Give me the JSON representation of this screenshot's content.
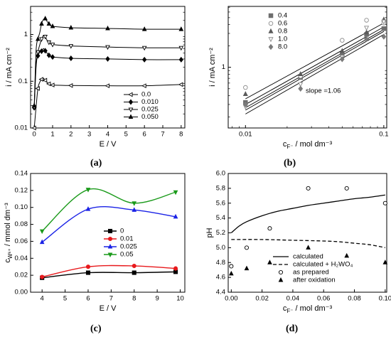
{
  "captions": [
    "(a)",
    "(b)",
    "(c)",
    "(d)"
  ],
  "chart_data": [
    {
      "panel": "a",
      "type": "line",
      "xlabel": "E / V",
      "ylabel": "i / mA cm⁻²",
      "xlim": [
        -0.2,
        8.2
      ],
      "ylim": [
        0.01,
        4
      ],
      "yscale": "log",
      "xticks": [
        "0",
        "1",
        "2",
        "3",
        "4",
        "5",
        "6",
        "7",
        "8"
      ],
      "yticks": [
        "0.01",
        "0.1",
        "1"
      ],
      "legend_position": "bottom-right",
      "series": [
        {
          "name": "0.0",
          "marker": "tri-left-open",
          "x": [
            0,
            0.1,
            0.2,
            0.3,
            0.4,
            0.5,
            0.6,
            0.7,
            0.8,
            0.9,
            1,
            2,
            4,
            6,
            8
          ],
          "y": [
            0.01,
            0.028,
            0.07,
            0.095,
            0.11,
            0.115,
            0.105,
            0.095,
            0.088,
            0.085,
            0.083,
            0.081,
            0.08,
            0.08,
            0.085
          ]
        },
        {
          "name": "0.010",
          "marker": "diamond-filled",
          "x": [
            0,
            0.1,
            0.2,
            0.3,
            0.4,
            0.5,
            0.6,
            0.7,
            0.8,
            0.9,
            1,
            2,
            4,
            6,
            8
          ],
          "y": [
            0.027,
            0.23,
            0.35,
            0.42,
            0.44,
            0.5,
            0.45,
            0.4,
            0.36,
            0.34,
            0.33,
            0.31,
            0.3,
            0.29,
            0.29
          ]
        },
        {
          "name": "0.025",
          "marker": "tri-down-open",
          "x": [
            0,
            0.1,
            0.2,
            0.3,
            0.4,
            0.5,
            0.6,
            0.7,
            0.8,
            0.9,
            1,
            2,
            4,
            6,
            8
          ],
          "y": [
            0.028,
            0.2,
            0.42,
            0.6,
            0.8,
            0.95,
            0.9,
            0.75,
            0.68,
            0.64,
            0.61,
            0.57,
            0.54,
            0.52,
            0.52
          ]
        },
        {
          "name": "0.050",
          "marker": "tri-up-filled",
          "x": [
            0,
            0.1,
            0.2,
            0.3,
            0.4,
            0.5,
            0.6,
            0.7,
            0.8,
            0.9,
            1,
            2,
            4,
            6,
            8
          ],
          "y": [
            0.03,
            0.45,
            0.8,
            1.1,
            1.7,
            2.1,
            2.2,
            1.9,
            1.7,
            1.6,
            1.5,
            1.4,
            1.35,
            1.3,
            1.3
          ]
        }
      ]
    },
    {
      "panel": "b",
      "type": "scatter",
      "xlabel": "c_F⁻ / mol dm⁻³",
      "ylabel": "i / mA cm⁻²",
      "xscale": "log",
      "yscale": "log",
      "xlim": [
        0.0075,
        0.105
      ],
      "ylim": [
        0.14,
        7.2
      ],
      "xticks": [
        "0.01",
        "0.1"
      ],
      "yticks": [
        "1"
      ],
      "legend_position": "top-left",
      "annotation": "slope =1.06",
      "series": [
        {
          "name": "0.4",
          "marker": "square-filled",
          "color": "#6e6e6e",
          "x": [
            0.01,
            0.025,
            0.05,
            0.075,
            0.1
          ],
          "y": [
            0.32,
            0.72,
            1.5,
            2.9,
            3.5
          ]
        },
        {
          "name": "0.6",
          "marker": "circle-open",
          "color": "#8c8c8c",
          "x": [
            0.01,
            0.025,
            0.05,
            0.075,
            0.1
          ],
          "y": [
            0.52,
            0.75,
            2.4,
            4.6,
            4.2
          ]
        },
        {
          "name": "0.8",
          "marker": "tri-up-filled",
          "color": "#5a5a5a",
          "x": [
            0.01,
            0.025,
            0.05,
            0.075,
            0.1
          ],
          "y": [
            0.42,
            0.8,
            1.7,
            3.1,
            4.7
          ]
        },
        {
          "name": "1.0",
          "marker": "tri-down-open",
          "color": "#8c8c8c",
          "x": [
            0.01,
            0.025,
            0.05,
            0.075,
            0.1
          ],
          "y": [
            0.28,
            0.58,
            1.4,
            3.6,
            4.4
          ]
        },
        {
          "name": "8.0",
          "marker": "diamond-filled",
          "color": "#7a7a7a",
          "x": [
            0.01,
            0.025,
            0.05,
            0.075,
            0.1
          ],
          "y": [
            0.3,
            0.5,
            1.3,
            2.5,
            2.7
          ]
        }
      ],
      "fit_lines": [
        {
          "x": [
            0.01,
            0.1
          ],
          "y": [
            0.36,
            4.2
          ]
        },
        {
          "x": [
            0.01,
            0.1
          ],
          "y": [
            0.3,
            3.7
          ]
        },
        {
          "x": [
            0.01,
            0.1
          ],
          "y": [
            0.27,
            3.4
          ]
        },
        {
          "x": [
            0.01,
            0.1
          ],
          "y": [
            0.25,
            3.2
          ]
        },
        {
          "x": [
            0.01,
            0.1
          ],
          "y": [
            0.22,
            2.9
          ]
        }
      ]
    },
    {
      "panel": "c",
      "type": "line",
      "xlabel": "E / V",
      "ylabel": "c_W⁶⁺ / mmol dm⁻³",
      "xlim": [
        3.5,
        10.2
      ],
      "ylim": [
        0,
        0.14
      ],
      "xticks": [
        "4",
        "5",
        "6",
        "7",
        "8",
        "9",
        "10"
      ],
      "yticks": [
        "0.00",
        "0.02",
        "0.04",
        "0.06",
        "0.08",
        "0.10",
        "0.12",
        "0.14"
      ],
      "legend_position": "center",
      "series": [
        {
          "name": "0",
          "color": "#000000",
          "marker": "square-filled",
          "x": [
            4,
            6,
            8,
            9.8
          ],
          "y": [
            0.017,
            0.023,
            0.023,
            0.024
          ]
        },
        {
          "name": "0.01",
          "color": "#e8191c",
          "marker": "circle-filled",
          "x": [
            4,
            6,
            8,
            9.8
          ],
          "y": [
            0.018,
            0.03,
            0.031,
            0.028
          ]
        },
        {
          "name": "0.025",
          "color": "#1a22e6",
          "marker": "tri-up-filled",
          "x": [
            4,
            6,
            8,
            9.8
          ],
          "y": [
            0.059,
            0.098,
            0.097,
            0.089
          ]
        },
        {
          "name": "0.05",
          "color": "#1a9a1a",
          "marker": "tri-down-filled",
          "x": [
            4,
            6,
            8,
            9.8
          ],
          "y": [
            0.072,
            0.121,
            0.105,
            0.118
          ]
        }
      ]
    },
    {
      "panel": "d",
      "type": "scatter",
      "xlabel": "c_F⁻ / mol dm⁻³",
      "ylabel": "pH",
      "xlim": [
        -0.002,
        0.101
      ],
      "ylim": [
        4.4,
        6.0
      ],
      "xticks": [
        "0.00",
        "0.02",
        "0.04",
        "0.06",
        "0.08",
        "0.10"
      ],
      "yticks": [
        "4.4",
        "4.6",
        "4.8",
        "5.0",
        "5.2",
        "5.4",
        "5.6",
        "5.8",
        "6.0"
      ],
      "legend_position": "bottom-left",
      "series": [
        {
          "name": "calculated",
          "style": "solid-line",
          "x": [
            0,
            0.005,
            0.01,
            0.02,
            0.03,
            0.04,
            0.05,
            0.06,
            0.07,
            0.08,
            0.09,
            0.1
          ],
          "y": [
            5.2,
            5.29,
            5.35,
            5.43,
            5.49,
            5.53,
            5.57,
            5.6,
            5.63,
            5.66,
            5.68,
            5.71
          ]
        },
        {
          "name": "calculated + H₂WO₄",
          "style": "dashed-line",
          "x": [
            0,
            0.02,
            0.04,
            0.06,
            0.07,
            0.08,
            0.09,
            0.1
          ],
          "y": [
            5.11,
            5.11,
            5.1,
            5.09,
            5.08,
            5.06,
            5.04,
            5.0
          ]
        },
        {
          "name": "as prepared",
          "style": "circle-open",
          "x": [
            0,
            0.01,
            0.025,
            0.05,
            0.075,
            0.1
          ],
          "y": [
            4.75,
            5.0,
            5.26,
            5.8,
            5.8,
            5.6
          ]
        },
        {
          "name": "after oxidation",
          "style": "tri-up-filled",
          "x": [
            0,
            0.01,
            0.025,
            0.05,
            0.075,
            0.1
          ],
          "y": [
            4.65,
            4.72,
            4.8,
            5.0,
            4.89,
            4.8
          ]
        }
      ]
    }
  ]
}
